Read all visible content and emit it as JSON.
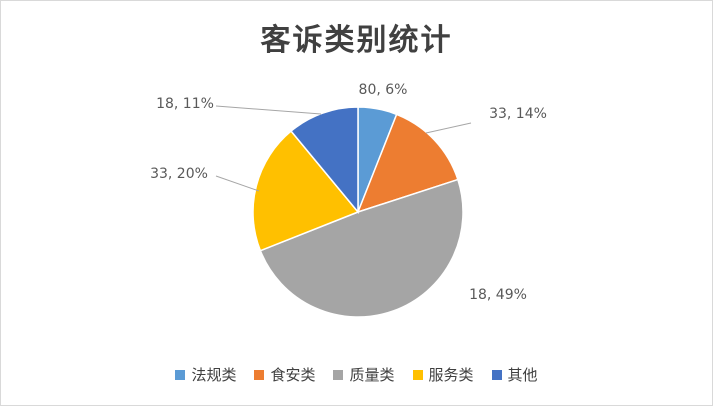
{
  "chart_data": {
    "type": "pie",
    "title": "客诉类别统计",
    "categories": [
      "法规类",
      "食安类",
      "质量类",
      "服务类",
      "其他"
    ],
    "values": [
      6,
      14,
      49,
      20,
      11
    ],
    "data_labels": [
      "80, 6%",
      "33, 14%",
      "18, 49%",
      "33, 20%",
      "18, 11%"
    ],
    "colors": [
      "#5b9bd5",
      "#ed7d31",
      "#a5a5a5",
      "#ffc000",
      "#4472c4"
    ],
    "legend_position": "bottom",
    "start_angle_deg": 0,
    "direction": "clockwise"
  }
}
